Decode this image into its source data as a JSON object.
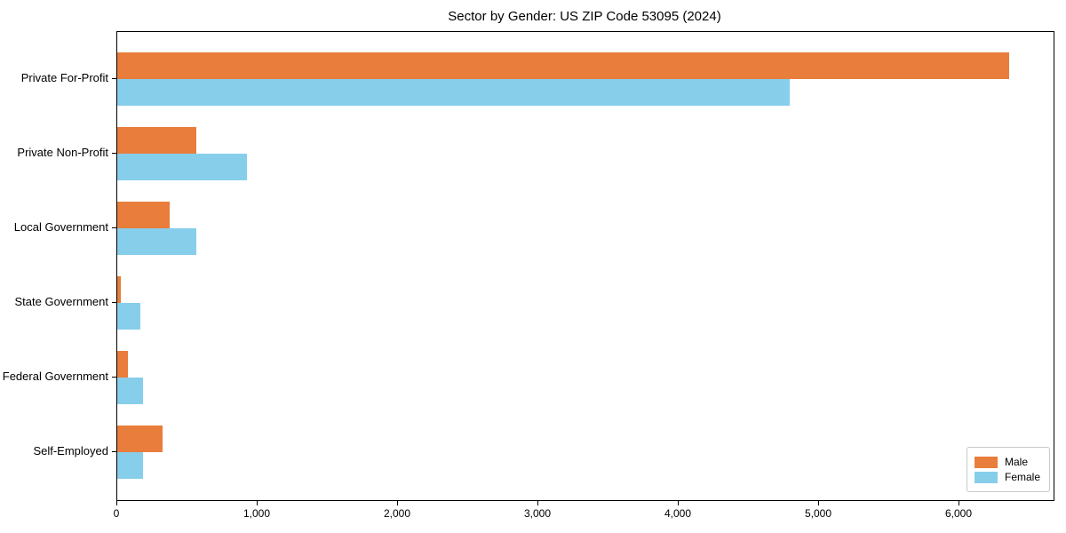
{
  "chart_data": {
    "type": "bar",
    "orientation": "horizontal",
    "title": "Sector by Gender: US ZIP Code 53095 (2024)",
    "categories": [
      "Private For-Profit",
      "Private Non-Profit",
      "Local Government",
      "State Government",
      "Federal Government",
      "Self-Employed"
    ],
    "series": [
      {
        "name": "Male",
        "color": "#e87d3c",
        "values": [
          6355,
          565,
          375,
          25,
          75,
          320
        ]
      },
      {
        "name": "Female",
        "color": "#87ceeb",
        "values": [
          4790,
          925,
          565,
          165,
          185,
          185
        ]
      }
    ],
    "xlim": [
      0,
      6671
    ],
    "xticks": [
      0,
      1000,
      2000,
      3000,
      4000,
      5000,
      6000
    ],
    "xtick_labels": [
      "0",
      "1,000",
      "2,000",
      "3,000",
      "4,000",
      "5,000",
      "6,000"
    ],
    "xlabel": "",
    "ylabel": "",
    "grid": false,
    "legend_position": "lower right",
    "background_color": "#ffffff",
    "axis_color": "#000000"
  }
}
